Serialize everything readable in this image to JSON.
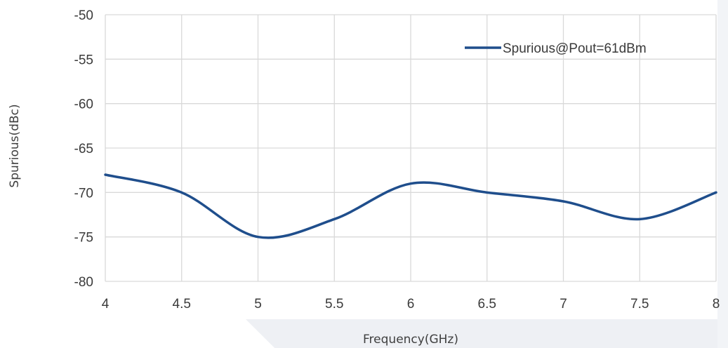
{
  "chart_data": {
    "type": "line",
    "title": "",
    "xlabel": "Frequency(GHz)",
    "ylabel": "Spurious(dBc)",
    "xlim": [
      4,
      8
    ],
    "ylim": [
      -80,
      -50
    ],
    "xticks": [
      4,
      4.5,
      5,
      5.5,
      6,
      6.5,
      7,
      7.5,
      8
    ],
    "xtick_labels": [
      "4",
      "4.5",
      "5",
      "5.5",
      "6",
      "6.5",
      "7",
      "7.5",
      "8"
    ],
    "yticks": [
      -50,
      -55,
      -60,
      -65,
      -70,
      -75,
      -80
    ],
    "ytick_labels": [
      "-50",
      "-55",
      "-60",
      "-65",
      "-70",
      "-75",
      "-80"
    ],
    "grid": true,
    "legend_position": "top-right",
    "series": [
      {
        "name": "Spurious@Pout=61dBm",
        "color": "#1f4e8c",
        "x": [
          4,
          4.5,
          5,
          5.5,
          6,
          6.5,
          7,
          7.5,
          8
        ],
        "y": [
          -68,
          -70,
          -75,
          -73,
          -69,
          -70,
          -71,
          -73,
          -70
        ]
      }
    ]
  }
}
